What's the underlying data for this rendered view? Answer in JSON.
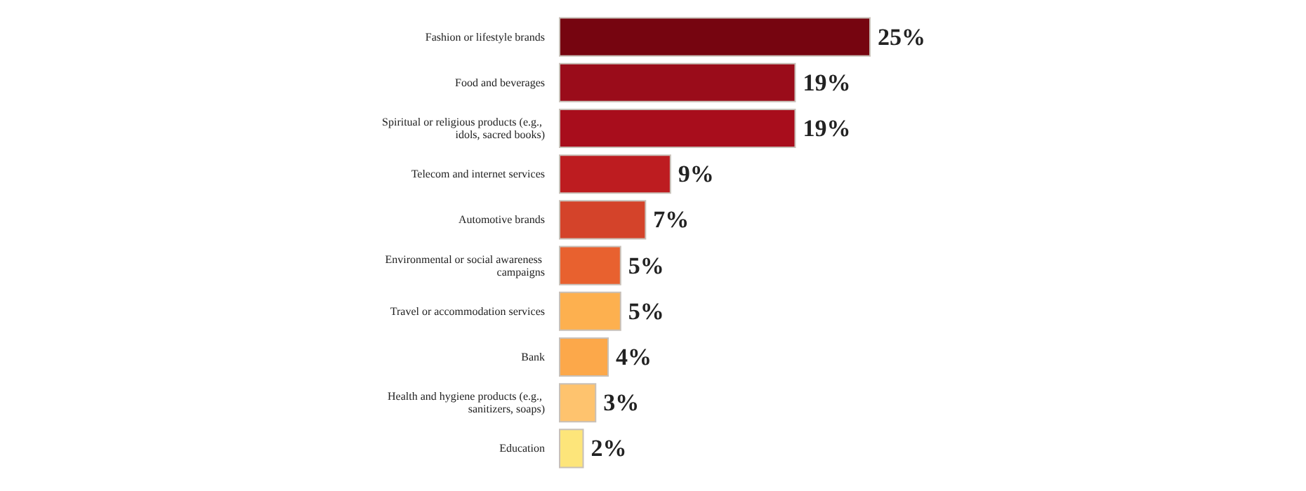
{
  "chart_data": {
    "type": "bar",
    "orientation": "horizontal",
    "categories": [
      "Fashion or lifestyle brands",
      "Food and beverages",
      "Spiritual or religious products (e.g., idols, sacred books)",
      "Telecom and internet services",
      "Automotive brands",
      "Environmental or social awareness campaigns",
      "Travel or accommodation services",
      "Bank",
      "Health and hygiene products (e.g., sanitizers, soaps)",
      "Education"
    ],
    "values": [
      25,
      19,
      19,
      9,
      7,
      5,
      5,
      4,
      3,
      2
    ],
    "colors": [
      "#760510",
      "#9a0c1a",
      "#a80d1c",
      "#bd1c20",
      "#d4432a",
      "#e8612f",
      "#fdb04f",
      "#fca84a",
      "#fec36e",
      "#fde57a"
    ],
    "value_labels": [
      "25%",
      "19%",
      "19%",
      "9%",
      "7%",
      "5%",
      "5%",
      "4%",
      "3%",
      "2%"
    ]
  }
}
